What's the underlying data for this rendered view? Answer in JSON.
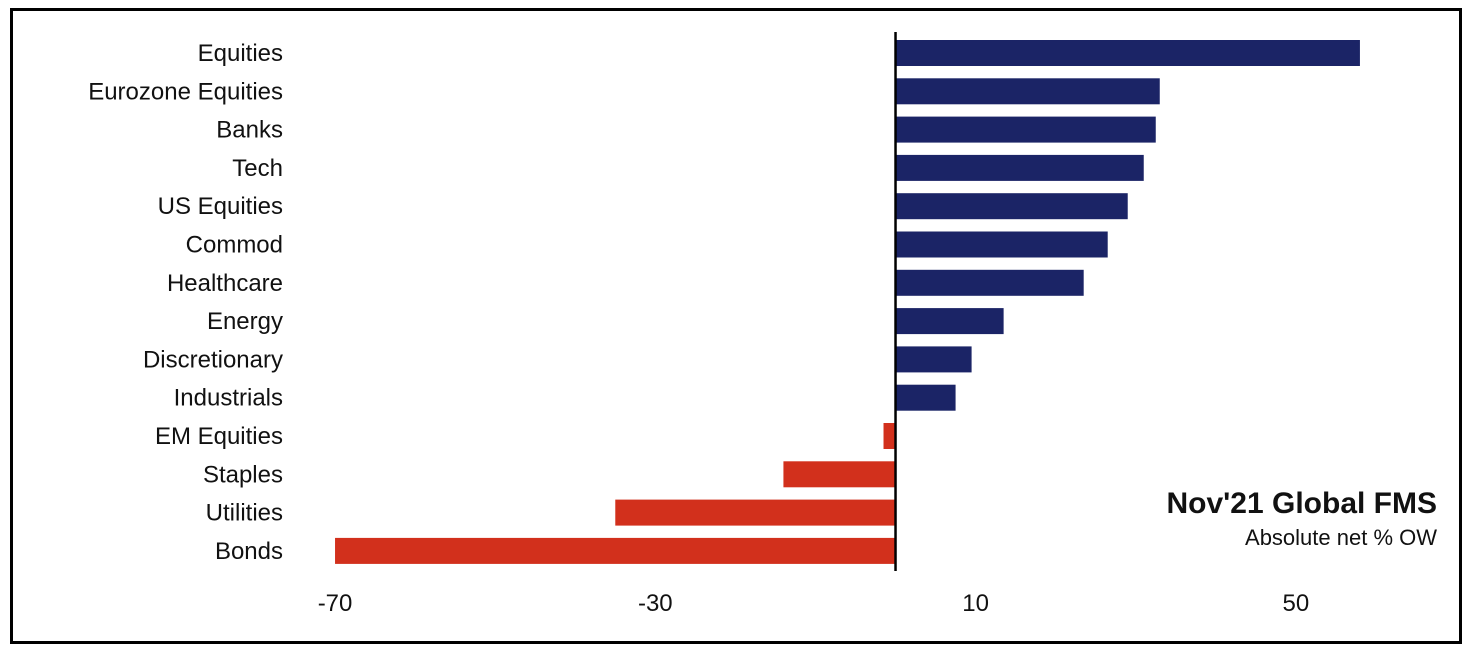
{
  "chart_data": {
    "type": "bar",
    "orientation": "horizontal",
    "title": "Nov'21 Global FMS",
    "subtitle": "Absolute net % OW",
    "categories": [
      "Equities",
      "Eurozone Equities",
      "Banks",
      "Tech",
      "US Equities",
      "Commod",
      "Healthcare",
      "Energy",
      "Discretionary",
      "Industrials",
      "EM Equities",
      "Staples",
      "Utilities",
      "Bonds"
    ],
    "values": [
      58,
      33,
      32.5,
      31,
      29,
      26.5,
      23.5,
      13.5,
      9.5,
      7.5,
      -1.5,
      -14,
      -35,
      -70
    ],
    "xlim": [
      -75,
      68
    ],
    "xticks": [
      -70,
      -30,
      10,
      50
    ],
    "xticklabels": [
      "-70",
      "-30",
      "10",
      "50"
    ],
    "grid": false,
    "colors": {
      "positive": "#1b2466",
      "negative": "#d2301c",
      "axis": "#000000"
    }
  }
}
